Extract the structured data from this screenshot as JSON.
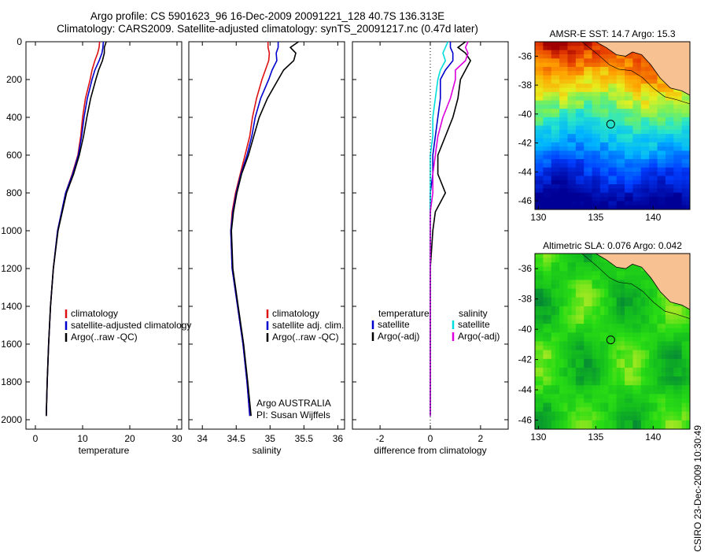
{
  "titles": {
    "line1": "Argo profile: CS 5901623_96 16-Dec-2009 20091221_128 40.7S 136.313E",
    "line2": "Climatology: CARS2009. Satellite-adjusted climatology: synTS_20091217.nc (0.47d later)"
  },
  "credit": "CSIRO 23-Dec-2009 10:30:49",
  "colors": {
    "climatology": "#dd1111",
    "satellite": "#0000cc",
    "argo": "#000000",
    "sal_satellite": "#00dddd",
    "sal_argo": "#dd00dd",
    "land": "#f7c191"
  },
  "chart_data": [
    {
      "type": "line",
      "id": "temperature",
      "xlabel": "temperature",
      "xlim": [
        -2,
        31
      ],
      "xticks": [
        0,
        10,
        20,
        30
      ],
      "ylim": [
        2050,
        0
      ],
      "yticks": [
        0,
        200,
        400,
        600,
        800,
        1000,
        1200,
        1400,
        1600,
        1800,
        2000
      ],
      "depth": [
        0,
        30,
        60,
        100,
        150,
        200,
        300,
        400,
        500,
        600,
        700,
        800,
        1000,
        1200,
        1400,
        1600,
        1800,
        1980
      ],
      "series": [
        {
          "name": "climatology",
          "color": "#dd1111",
          "values": [
            13.6,
            13.5,
            13.2,
            12.6,
            12.0,
            11.6,
            10.6,
            10.0,
            9.6,
            9.0,
            7.8,
            6.4,
            4.7,
            3.8,
            3.2,
            2.8,
            2.5,
            2.3
          ]
        },
        {
          "name": "satellite-adjusted climatology",
          "color": "#0000cc",
          "values": [
            14.4,
            14.3,
            14.1,
            13.5,
            12.6,
            12.0,
            11.0,
            10.3,
            9.8,
            9.1,
            7.9,
            6.4,
            4.7,
            3.8,
            3.2,
            2.8,
            2.5,
            2.3
          ]
        },
        {
          "name": "Argo(..raw -QC)",
          "color": "#000000",
          "values": [
            15.0,
            14.6,
            14.6,
            14.2,
            13.4,
            12.8,
            11.7,
            10.9,
            10.2,
            9.3,
            8.1,
            6.6,
            4.8,
            3.8,
            3.2,
            2.8,
            2.5,
            2.3
          ]
        }
      ],
      "legend": [
        "climatology",
        "satellite-adjusted climatology",
        "Argo(..raw -QC)"
      ]
    },
    {
      "type": "line",
      "id": "salinity",
      "xlabel": "salinity",
      "xlim": [
        33.8,
        36.1
      ],
      "xticks": [
        34,
        34.5,
        35,
        35.5,
        36
      ],
      "xticklabels": [
        "34",
        "34.5",
        "35",
        "35.5",
        "36"
      ],
      "ylim": [
        2050,
        0
      ],
      "depth": [
        0,
        30,
        60,
        100,
        150,
        200,
        300,
        400,
        500,
        600,
        700,
        800,
        900,
        1000,
        1200,
        1400,
        1600,
        1800,
        1980
      ],
      "series": [
        {
          "name": "climatology",
          "color": "#dd1111",
          "values": [
            34.97,
            34.97,
            34.99,
            34.98,
            34.93,
            34.88,
            34.8,
            34.74,
            34.7,
            34.63,
            34.56,
            34.49,
            34.44,
            34.42,
            34.44,
            34.52,
            34.6,
            34.66,
            34.7
          ]
        },
        {
          "name": "satellite adj. clim.",
          "color": "#0000cc",
          "values": [
            35.12,
            35.12,
            35.09,
            35.1,
            35.03,
            34.98,
            34.86,
            34.78,
            34.73,
            34.66,
            34.57,
            34.5,
            34.45,
            34.42,
            34.44,
            34.52,
            34.6,
            34.66,
            34.7
          ]
        },
        {
          "name": "Argo(..raw -QC)",
          "color": "#000000",
          "values": [
            35.42,
            35.3,
            35.38,
            35.35,
            35.2,
            35.12,
            34.96,
            34.84,
            34.76,
            34.68,
            34.58,
            34.51,
            34.46,
            34.43,
            34.45,
            34.53,
            34.61,
            34.67,
            34.72
          ]
        }
      ],
      "legend": [
        "climatology",
        "satellite adj. clim.",
        "Argo(..raw -QC)"
      ],
      "annotation": [
        "Argo AUSTRALIA",
        "PI: Susan Wijffels"
      ]
    },
    {
      "type": "line",
      "id": "difference",
      "xlabel": "difference from climatology",
      "xlim": [
        -3.1,
        3.1
      ],
      "xticks": [
        -2,
        0,
        2
      ],
      "ylim": [
        2050,
        0
      ],
      "depth": [
        0,
        30,
        60,
        100,
        150,
        200,
        300,
        400,
        500,
        600,
        700,
        800,
        900,
        1000,
        1200,
        1400,
        1600,
        1800,
        1980
      ],
      "series": [
        {
          "name": "temperature satellite",
          "color": "#0000cc",
          "values": [
            0.8,
            0.8,
            0.9,
            0.9,
            0.6,
            0.4,
            0.4,
            0.3,
            0.2,
            0.1,
            0.1,
            0.0,
            0.0,
            0.0,
            0.0,
            0.0,
            0.0,
            0.0,
            0.0
          ]
        },
        {
          "name": "temperature Argo(-adj)",
          "color": "#000000",
          "values": [
            1.4,
            1.1,
            1.4,
            1.6,
            1.4,
            1.2,
            1.1,
            0.9,
            0.6,
            0.3,
            0.3,
            0.6,
            0.2,
            0.1,
            0.0,
            0.0,
            0.0,
            0.0,
            0.0
          ]
        },
        {
          "name": "salinity satellite",
          "color": "#00dddd",
          "values": [
            0.7,
            0.6,
            0.5,
            0.6,
            0.4,
            0.3,
            0.2,
            0.1,
            0.1,
            0.0,
            0.0,
            0.0,
            0.0,
            0.0,
            0.0,
            0.0,
            0.0,
            0.0,
            0.0
          ]
        },
        {
          "name": "salinity Argo(-adj)",
          "color": "#dd00dd",
          "values": [
            1.5,
            1.4,
            1.5,
            1.4,
            1.0,
            1.0,
            0.8,
            0.5,
            0.3,
            0.2,
            0.1,
            0.1,
            0.0,
            0.0,
            0.0,
            0.0,
            0.0,
            0.0,
            0.0
          ]
        }
      ],
      "legend_temperature": {
        "heading": "temperature",
        "items": [
          "satellite",
          "Argo(-adj)"
        ]
      },
      "legend_salinity": {
        "heading": "salinity",
        "items": [
          "satellite",
          "Argo(-adj)"
        ]
      }
    },
    {
      "type": "heatmap",
      "id": "sst",
      "title": "AMSR-E SST: 14.7 Argo: 15.3",
      "xlim": [
        129.7,
        143.2
      ],
      "ylim": [
        -46.6,
        -35.0
      ],
      "xticks": [
        130,
        135,
        140
      ],
      "yticks": [
        -36,
        -38,
        -40,
        -42,
        -44,
        -46
      ],
      "marker": [
        136.3,
        -40.7
      ]
    },
    {
      "type": "heatmap",
      "id": "sla",
      "title": "Altimetric SLA: 0.076 Argo: 0.042",
      "xlim": [
        129.7,
        143.2
      ],
      "ylim": [
        -46.6,
        -35.0
      ],
      "xticks": [
        130,
        135,
        140
      ],
      "yticks": [
        -36,
        -38,
        -40,
        -42,
        -44,
        -46
      ],
      "marker": [
        136.3,
        -40.7
      ]
    }
  ]
}
